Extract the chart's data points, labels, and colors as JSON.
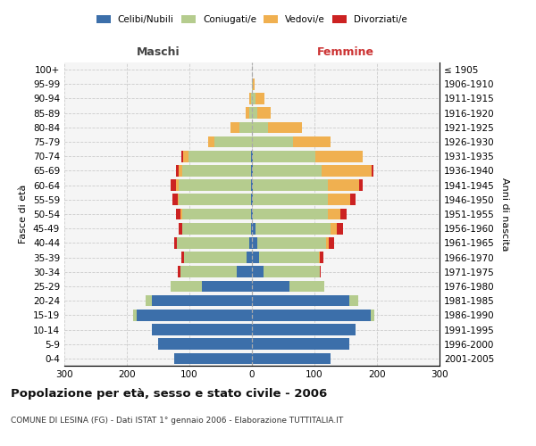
{
  "age_groups": [
    "0-4",
    "5-9",
    "10-14",
    "15-19",
    "20-24",
    "25-29",
    "30-34",
    "35-39",
    "40-44",
    "45-49",
    "50-54",
    "55-59",
    "60-64",
    "65-69",
    "70-74",
    "75-79",
    "80-84",
    "85-89",
    "90-94",
    "95-99",
    "100+"
  ],
  "birth_years": [
    "2001-2005",
    "1996-2000",
    "1991-1995",
    "1986-1990",
    "1981-1985",
    "1976-1980",
    "1971-1975",
    "1966-1970",
    "1961-1965",
    "1956-1960",
    "1951-1955",
    "1946-1950",
    "1941-1945",
    "1936-1940",
    "1931-1935",
    "1926-1930",
    "1921-1925",
    "1916-1920",
    "1911-1915",
    "1906-1910",
    "≤ 1905"
  ],
  "male": {
    "celibi": [
      125,
      150,
      160,
      185,
      160,
      80,
      25,
      8,
      5,
      2,
      2,
      2,
      2,
      2,
      2,
      0,
      0,
      0,
      0,
      0,
      0
    ],
    "coniugati": [
      0,
      0,
      0,
      5,
      10,
      50,
      90,
      100,
      115,
      110,
      110,
      115,
      115,
      110,
      100,
      60,
      20,
      5,
      2,
      0,
      0
    ],
    "vedovi": [
      0,
      0,
      0,
      0,
      0,
      0,
      0,
      0,
      0,
      0,
      2,
      2,
      5,
      5,
      8,
      10,
      15,
      5,
      3,
      0,
      0
    ],
    "divorziati": [
      0,
      0,
      0,
      0,
      0,
      0,
      3,
      5,
      5,
      5,
      8,
      8,
      8,
      5,
      3,
      0,
      0,
      0,
      0,
      0,
      0
    ]
  },
  "female": {
    "nubili": [
      125,
      155,
      165,
      190,
      155,
      60,
      18,
      12,
      8,
      5,
      2,
      2,
      2,
      2,
      2,
      0,
      0,
      0,
      0,
      0,
      0
    ],
    "coniugate": [
      0,
      0,
      0,
      5,
      15,
      55,
      90,
      95,
      110,
      120,
      120,
      120,
      120,
      110,
      100,
      65,
      25,
      8,
      5,
      2,
      0
    ],
    "vedove": [
      0,
      0,
      0,
      0,
      0,
      0,
      0,
      2,
      5,
      10,
      20,
      35,
      50,
      80,
      75,
      60,
      55,
      22,
      15,
      2,
      0
    ],
    "divorziate": [
      0,
      0,
      0,
      0,
      0,
      0,
      2,
      5,
      8,
      10,
      10,
      8,
      5,
      2,
      0,
      0,
      0,
      0,
      0,
      0,
      0
    ]
  },
  "colors": {
    "celibi": "#3c6faa",
    "coniugati": "#b5cc8e",
    "vedovi": "#f0b050",
    "divorziati": "#cc2222"
  },
  "title": "Popolazione per età, sesso e stato civile - 2006",
  "subtitle": "COMUNE DI LESINA (FG) - Dati ISTAT 1° gennaio 2006 - Elaborazione TUTTITALIA.IT",
  "xlim": 300,
  "background_color": "#ffffff",
  "grid_color": "#cccccc",
  "ylabel_left": "Fasce di età",
  "ylabel_right": "Anni di nascita"
}
